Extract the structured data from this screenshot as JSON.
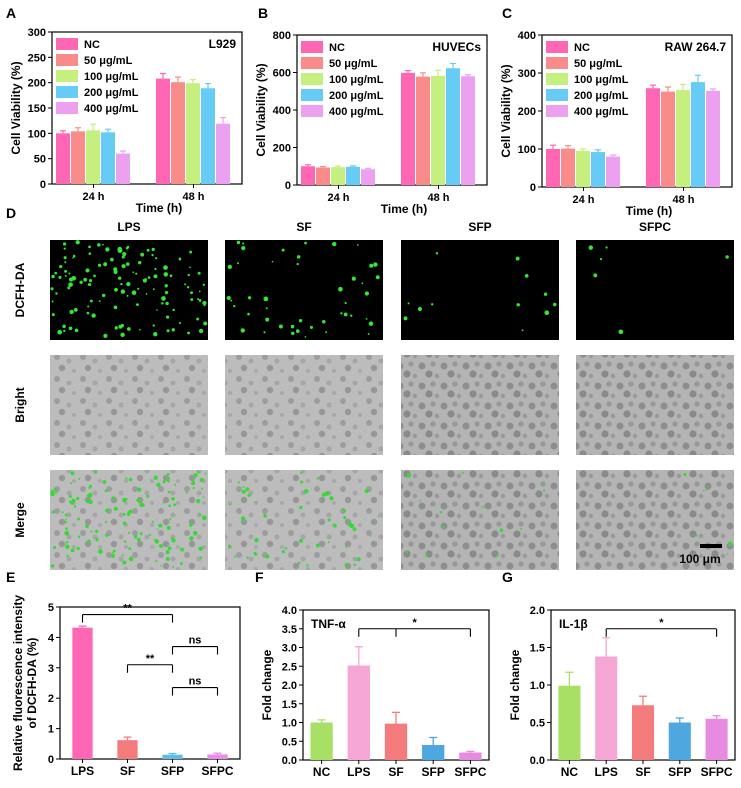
{
  "panels": {
    "A": "A",
    "B": "B",
    "C": "C",
    "D": "D",
    "E": "E",
    "F": "F",
    "G": "G"
  },
  "colors": {
    "NC": "#ff66b3",
    "50": "#f98b8b",
    "100": "#c5ef7e",
    "200": "#66ccf5",
    "400": "#eba0f0",
    "E_LPS": "#ff66b3",
    "E_SF": "#f47b7b",
    "E_SFP": "#5bbde8",
    "E_SFPC": "#e88fe8",
    "FG_NC": "#a8e066",
    "FG_LPS": "#f5a6d5",
    "FG_SF": "#f47b7b",
    "FG_SFP": "#4fa7e0",
    "FG_SFPC": "#e78be0"
  },
  "chart_data": [
    {
      "id": "A",
      "type": "bar",
      "categories": [
        "24 h",
        "48 h"
      ],
      "xlabel": "Time (h)",
      "ylabel": "Cell Viability (%)",
      "ylim": [
        0,
        300
      ],
      "yticks": [
        0,
        50,
        100,
        150,
        200,
        250,
        300
      ],
      "annotation": "L929",
      "legend": "top-left",
      "series": [
        {
          "name": "NC",
          "values": [
            100,
            208
          ],
          "err": [
            5,
            10
          ]
        },
        {
          "name": "50 μg/mL",
          "values": [
            104,
            201
          ],
          "err": [
            7,
            10
          ]
        },
        {
          "name": "100 μg/mL",
          "values": [
            106,
            199
          ],
          "err": [
            12,
            7
          ]
        },
        {
          "name": "200 μg/mL",
          "values": [
            102,
            189
          ],
          "err": [
            6,
            9
          ]
        },
        {
          "name": "400 μg/mL",
          "values": [
            60,
            119
          ],
          "err": [
            5,
            12
          ]
        }
      ]
    },
    {
      "id": "B",
      "type": "bar",
      "categories": [
        "24 h",
        "48 h"
      ],
      "xlabel": "Time (h)",
      "ylabel": "Cell Viability (%)",
      "ylim": [
        0,
        800
      ],
      "yticks": [
        0,
        200,
        400,
        600,
        800
      ],
      "annotation": "HUVECs",
      "legend": "top-left",
      "series": [
        {
          "name": "NC",
          "values": [
            100,
            598
          ],
          "err": [
            8,
            12
          ]
        },
        {
          "name": "50 μg/mL",
          "values": [
            93,
            578
          ],
          "err": [
            5,
            20
          ]
        },
        {
          "name": "100 μg/mL",
          "values": [
            95,
            582
          ],
          "err": [
            6,
            30
          ]
        },
        {
          "name": "200 μg/mL",
          "values": [
            97,
            623
          ],
          "err": [
            5,
            25
          ]
        },
        {
          "name": "400 μg/mL",
          "values": [
            84,
            580
          ],
          "err": [
            5,
            8
          ]
        }
      ]
    },
    {
      "id": "C",
      "type": "bar",
      "categories": [
        "24 h",
        "48 h"
      ],
      "xlabel": "Time (h)",
      "ylabel": "Cell Viability (%)",
      "ylim": [
        0,
        400
      ],
      "yticks": [
        0,
        100,
        200,
        300,
        400
      ],
      "annotation": "RAW 264.7",
      "legend": "top-left",
      "series": [
        {
          "name": "NC",
          "values": [
            100,
            260
          ],
          "err": [
            10,
            8
          ]
        },
        {
          "name": "50 μg/mL",
          "values": [
            101,
            251
          ],
          "err": [
            8,
            12
          ]
        },
        {
          "name": "100 μg/mL",
          "values": [
            95,
            255
          ],
          "err": [
            5,
            15
          ]
        },
        {
          "name": "200 μg/mL",
          "values": [
            92,
            276
          ],
          "err": [
            6,
            18
          ]
        },
        {
          "name": "400 μg/mL",
          "values": [
            80,
            253
          ],
          "err": [
            4,
            5
          ]
        }
      ]
    },
    {
      "id": "E",
      "type": "bar",
      "categories": [
        "LPS",
        "SF",
        "SFP",
        "SFPC"
      ],
      "ylabel": "Relative fluorescence intensity\nof DCFH-DA (%)",
      "ylabel_lines": [
        "Relative fluorescence intensity",
        "of DCFH-DA (%)"
      ],
      "ylim": [
        0,
        5
      ],
      "yticks": [
        0,
        1,
        2,
        3,
        4,
        5
      ],
      "values": [
        4.32,
        0.62,
        0.14,
        0.15
      ],
      "err": [
        0.05,
        0.1,
        0.04,
        0.04
      ],
      "sig": [
        {
          "from": 0,
          "to": 2,
          "label": "**",
          "y": 4.75
        },
        {
          "from": 1,
          "to": 2,
          "label": "**",
          "y": 3.1
        },
        {
          "from": 2,
          "to": 3,
          "label": "ns",
          "y": 3.7
        },
        {
          "from": 2,
          "to": 3,
          "label": "ns",
          "y": 2.35
        }
      ]
    },
    {
      "id": "F",
      "type": "bar",
      "categories": [
        "NC",
        "LPS",
        "SF",
        "SFP",
        "SFPC"
      ],
      "ylabel": "Fold change",
      "ylim": [
        0,
        4.0
      ],
      "yticks": [
        "0.0",
        "0.5",
        "1.0",
        "1.5",
        "2.0",
        "2.5",
        "3.0",
        "3.5",
        "4.0"
      ],
      "annotation": "TNF-α",
      "values": [
        1.0,
        2.52,
        0.97,
        0.4,
        0.2
      ],
      "err": [
        0.07,
        0.5,
        0.3,
        0.2,
        0.03
      ],
      "sig": [
        {
          "from": 1,
          "to": 4,
          "mid": 2,
          "label": "*",
          "y": 3.5
        }
      ]
    },
    {
      "id": "G",
      "type": "bar",
      "categories": [
        "NC",
        "LPS",
        "SF",
        "SFP",
        "SFPC"
      ],
      "ylabel": "Fold change",
      "ylim": [
        0,
        2.0
      ],
      "yticks": [
        "0.0",
        "0.5",
        "1.0",
        "1.5",
        "2.0"
      ],
      "annotation": "IL-1β",
      "values": [
        0.99,
        1.38,
        0.73,
        0.5,
        0.55
      ],
      "err": [
        0.18,
        0.25,
        0.12,
        0.06,
        0.04
      ],
      "sig": [
        {
          "from": 1,
          "to": 4,
          "label": "*",
          "y": 1.75
        }
      ]
    }
  ],
  "micrographs": {
    "columns": [
      "LPS",
      "SF",
      "SFP",
      "SFPC"
    ],
    "rows": [
      "DCFH-DA",
      "Bright",
      "Merge"
    ],
    "scale_bar": "100 μm"
  }
}
